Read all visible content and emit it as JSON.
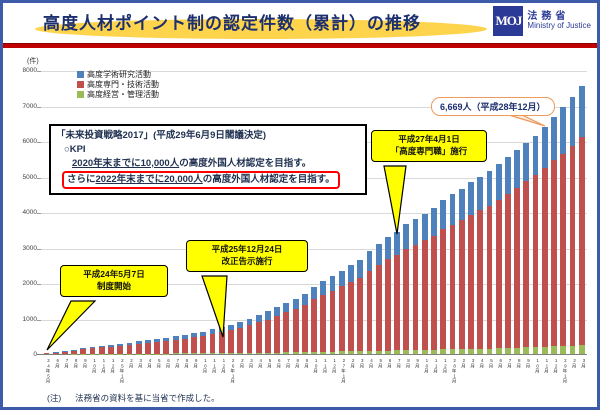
{
  "page": {
    "title": "高度人材ポイント制の認定件数（累計）の推移",
    "note_label": "(注)",
    "note_text": "法務省の資料を基に当省で作成した。"
  },
  "logo": {
    "monogram": "MOJ",
    "name_ja": "法務省",
    "name_en": "Ministry of Justice"
  },
  "kpi_box": {
    "line1": "「未来投資戦略2017」(平成29年6月9日閣議決定)",
    "line2": "○KPI",
    "line3_underline": "2020年末までに10,000人",
    "line3_rest": "の高度外国人材認定を目指す。",
    "line4_prefix": "さらに",
    "line4_underline": "2022年末までに20,000人",
    "line4_rest": "の高度外国人材認定を目指す。"
  },
  "callouts": {
    "annotation_6669": "6,669人（平成28年12月）",
    "start": [
      "平成24年5月7日",
      "制度開始"
    ],
    "kokuji": [
      "平成25年12月24日",
      "改正告示施行"
    ],
    "senmonshoku": [
      "平成27年4月1日",
      "「高度専門職」施行"
    ]
  },
  "chart_data": {
    "type": "bar",
    "stacked": true,
    "title": "高度人材ポイント制の認定件数（累計）の推移",
    "unit_label": "(件)",
    "ylim": [
      0,
      8000
    ],
    "ytick_interval": 1000,
    "grid": true,
    "legend_position": "top-left-inside",
    "legend": [
      {
        "label": "高度学術研究活動",
        "color": "#4f81bd"
      },
      {
        "label": "高度専門・技術活動",
        "color": "#c0504d"
      },
      {
        "label": "高度経営・管理活動",
        "color": "#9bbb59"
      }
    ],
    "categories": [
      "24年5月",
      "6月",
      "7月",
      "8月",
      "9月",
      "10月",
      "11月",
      "12月",
      "25年1月",
      "2月",
      "3月",
      "4月",
      "5月",
      "6月",
      "7月",
      "8月",
      "9月",
      "10月",
      "11月",
      "12月",
      "26年1月",
      "2月",
      "3月",
      "4月",
      "5月",
      "6月",
      "7月",
      "8月",
      "9月",
      "10月",
      "11月",
      "12月",
      "27年1月",
      "2月",
      "3月",
      "4月",
      "5月",
      "6月",
      "7月",
      "8月",
      "9月",
      "10月",
      "11月",
      "12月",
      "28年1月",
      "2月",
      "3月",
      "4月",
      "5月",
      "6月",
      "7月",
      "8月",
      "9月",
      "10月",
      "11月",
      "12月",
      "29年1月",
      "2月",
      "3月"
    ],
    "series": [
      {
        "name": "高度経営・管理活動",
        "color": "#9bbb59",
        "stack_order": "bottom",
        "values": [
          1,
          2,
          2,
          4,
          5,
          6,
          7,
          8,
          9,
          10,
          11,
          12,
          13,
          14,
          15,
          16,
          17,
          19,
          21,
          23,
          25,
          27,
          30,
          33,
          36,
          40,
          44,
          47,
          51,
          57,
          62,
          66,
          71,
          75,
          80,
          87,
          93,
          99,
          104,
          110,
          114,
          119,
          123,
          131,
          135,
          140,
          146,
          150,
          155,
          161,
          167,
          173,
          196,
          203,
          210,
          220,
          225,
          232,
          240
        ]
      },
      {
        "name": "高度専門・技術活動",
        "color": "#c0504d",
        "stack_order": "middle",
        "values": [
          23,
          38,
          63,
          93,
          125,
          156,
          179,
          203,
          226,
          249,
          281,
          312,
          335,
          359,
          390,
          421,
          453,
          483,
          546,
          593,
          639,
          702,
          780,
          858,
          936,
          1029,
          1130,
          1217,
          1326,
          1482,
          1598,
          1716,
          1832,
          1950,
          2066,
          2262,
          2418,
          2574,
          2690,
          2846,
          2964,
          3080,
          3198,
          3392,
          3510,
          3626,
          3782,
          3900,
          4016,
          4172,
          4328,
          4507,
          4669,
          4827,
          5035,
          5254,
          5415,
          5638,
          5880
        ]
      },
      {
        "name": "高度学術研究活動",
        "color": "#4f81bd",
        "stack_order": "top",
        "values": [
          6,
          10,
          15,
          23,
          30,
          38,
          44,
          49,
          55,
          61,
          68,
          76,
          82,
          87,
          95,
          103,
          110,
          118,
          133,
          144,
          156,
          171,
          190,
          209,
          228,
          251,
          276,
          296,
          323,
          361,
          390,
          418,
          447,
          475,
          504,
          551,
          589,
          627,
          656,
          694,
          722,
          751,
          779,
          827,
          855,
          884,
          922,
          950,
          979,
          1017,
          1055,
          1070,
          1085,
          1120,
          1155,
          1195,
          1330,
          1380,
          1430
        ]
      }
    ],
    "annotated_point": {
      "category": "28年12月",
      "total": 6669
    }
  }
}
